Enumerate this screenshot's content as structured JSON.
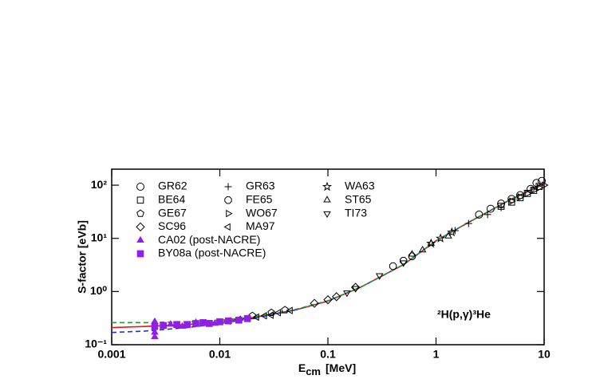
{
  "chart_data": {
    "type": "scatter",
    "x_label": {
      "text": "E",
      "subscript": "cm",
      "unit": "[MeV]"
    },
    "y_label": "S-factor [eVb]",
    "annotation": "²H(p,γ)³He",
    "xscale": "log",
    "yscale": "log",
    "xlim": [
      0.001,
      10
    ],
    "ylim": [
      0.1,
      200
    ],
    "xticks": [
      0.001,
      0.01,
      0.1,
      1,
      10
    ],
    "yticks": [
      {
        "value": 0.1,
        "label": "10⁻¹"
      },
      {
        "value": 1,
        "label": "10⁰"
      },
      {
        "value": 10,
        "label": "10¹"
      },
      {
        "value": 100,
        "label": "10²"
      }
    ],
    "curves": [
      {
        "style": "solid",
        "color": "#e8141c",
        "x": [
          0.001,
          0.002,
          0.005,
          0.01,
          0.02,
          0.05,
          0.1,
          0.2,
          0.5,
          1,
          2,
          5,
          10
        ],
        "values": [
          0.21,
          0.22,
          0.24,
          0.27,
          0.32,
          0.45,
          0.66,
          1.2,
          3.2,
          9,
          20,
          55,
          105
        ]
      },
      {
        "style": "dashed",
        "color": "#2030d8",
        "x": [
          0.001,
          0.002,
          0.005,
          0.01,
          0.02,
          0.05,
          0.1,
          0.2,
          0.5,
          1,
          2,
          5,
          10
        ],
        "values": [
          0.17,
          0.18,
          0.21,
          0.25,
          0.31,
          0.45,
          0.67,
          1.2,
          3.2,
          9,
          20,
          55,
          105
        ]
      },
      {
        "style": "dashed",
        "color": "#2a9a2a",
        "x": [
          0.001,
          0.002,
          0.005,
          0.01,
          0.02,
          0.05,
          0.1,
          0.2,
          0.5,
          1,
          2,
          5,
          10
        ],
        "values": [
          0.26,
          0.26,
          0.27,
          0.29,
          0.33,
          0.46,
          0.67,
          1.2,
          3.2,
          9,
          20,
          55,
          105
        ]
      }
    ],
    "series": [
      {
        "name": "GR62",
        "marker": "circle",
        "color": "#000000",
        "x": [
          2.5,
          3.2,
          4,
          5,
          6,
          7.5,
          8.5,
          9.5
        ],
        "values": [
          28,
          36,
          45,
          55,
          65,
          85,
          110,
          120
        ]
      },
      {
        "name": "GR63",
        "marker": "plus",
        "color": "#000000",
        "x": [
          1.5,
          2,
          3,
          4
        ],
        "values": [
          14,
          19,
          28,
          38
        ]
      },
      {
        "name": "WA63",
        "marker": "star",
        "color": "#000000",
        "x": [
          0.9,
          1.1,
          1.4
        ],
        "values": [
          8,
          10,
          13
        ]
      },
      {
        "name": "BE64",
        "marker": "square",
        "color": "#000000",
        "x": [
          4,
          5,
          6,
          7,
          8,
          9
        ],
        "values": [
          40,
          48,
          58,
          70,
          80,
          95
        ]
      },
      {
        "name": "FE65",
        "marker": "octagon",
        "color": "#000000",
        "x": [
          0.4,
          0.5,
          0.6
        ],
        "values": [
          3,
          3.8,
          4.6
        ]
      },
      {
        "name": "ST65",
        "marker": "triangle",
        "color": "#000000",
        "x": [
          0.6,
          0.75,
          0.9,
          1.3
        ],
        "values": [
          5,
          6,
          8,
          11
        ]
      },
      {
        "name": "GE67",
        "marker": "pentagon",
        "color": "#000000",
        "x": [
          0.02,
          0.03,
          0.04
        ],
        "values": [
          0.35,
          0.4,
          0.45
        ]
      },
      {
        "name": "WO67",
        "marker": "triangle-right",
        "color": "#000000",
        "x": [
          5,
          6,
          7,
          8,
          9,
          10
        ],
        "values": [
          50,
          60,
          70,
          80,
          90,
          100
        ]
      },
      {
        "name": "TI73",
        "marker": "triangle-down",
        "color": "#000000",
        "x": [
          0.15,
          0.18,
          0.3,
          0.5
        ],
        "values": [
          0.95,
          1.15,
          2,
          3.5
        ]
      },
      {
        "name": "SC96",
        "marker": "diamond",
        "color": "#000000",
        "x": [
          0.075,
          0.1,
          0.12,
          0.18
        ],
        "values": [
          0.6,
          0.7,
          0.8,
          1.2
        ]
      },
      {
        "name": "MA97",
        "marker": "triangle-left",
        "color": "#000000",
        "x": [
          0.012,
          0.015,
          0.018,
          0.022,
          0.026,
          0.03,
          0.035,
          0.045
        ],
        "values": [
          0.28,
          0.3,
          0.31,
          0.33,
          0.35,
          0.36,
          0.4,
          0.44
        ]
      },
      {
        "name": "CA02 (post-NACRE)",
        "marker": "triangle-filled",
        "color": "#9020e8",
        "x": [
          0.0025,
          0.0025,
          0.0025,
          0.003,
          0.0035,
          0.0045,
          0.006,
          0.009,
          0.012
        ],
        "values": [
          0.27,
          0.17,
          0.14,
          0.23,
          0.24,
          0.22,
          0.26,
          0.25,
          0.27
        ]
      },
      {
        "name": "BY08a (post-NACRE)",
        "marker": "square-filled",
        "color": "#9020e8",
        "x": [
          0.0025,
          0.003,
          0.004,
          0.005,
          0.006,
          0.007,
          0.008,
          0.01,
          0.012,
          0.015,
          0.018
        ],
        "values": [
          0.22,
          0.23,
          0.24,
          0.24,
          0.25,
          0.26,
          0.25,
          0.27,
          0.28,
          0.29,
          0.31
        ]
      }
    ]
  }
}
